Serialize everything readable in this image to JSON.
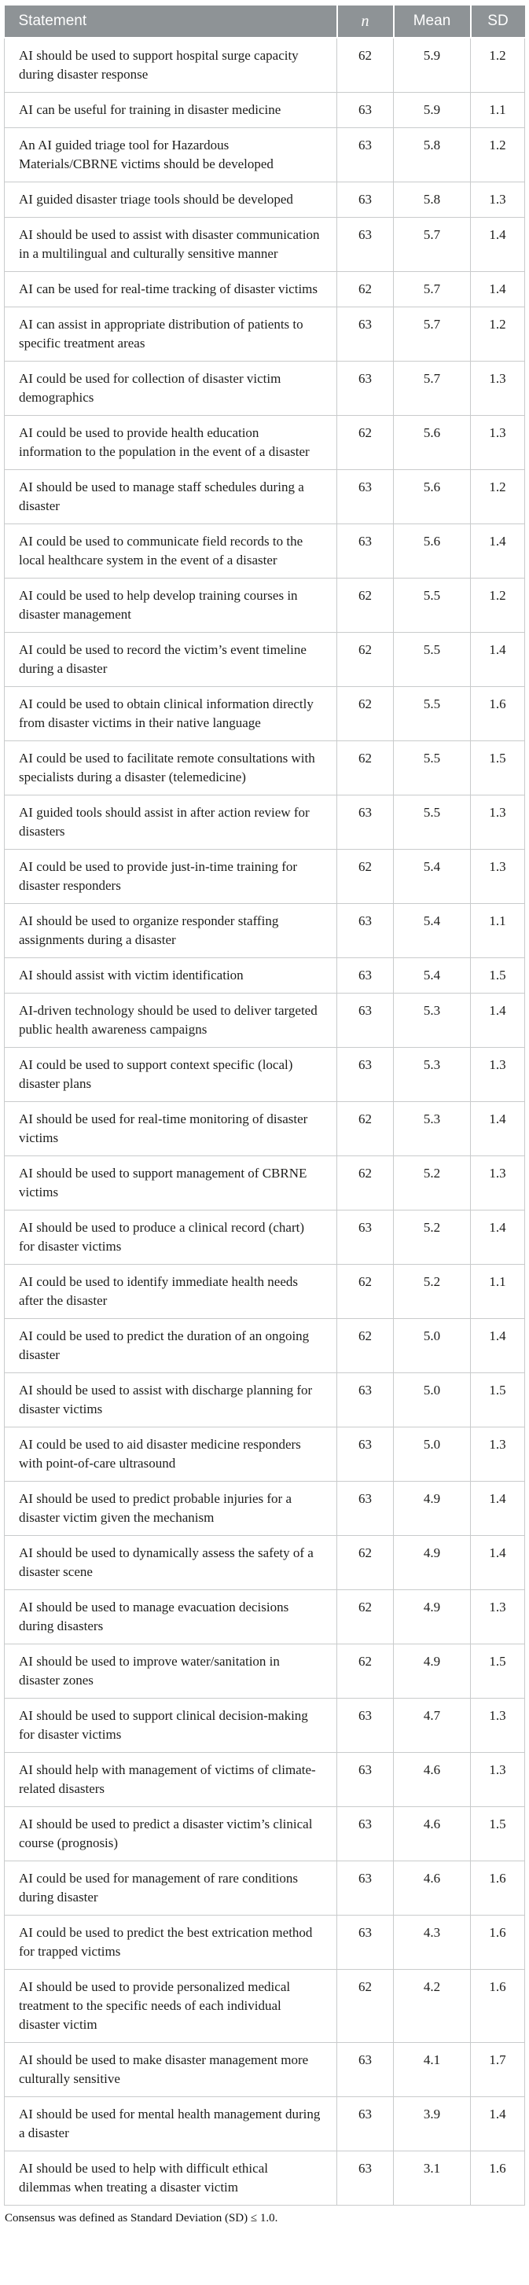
{
  "table": {
    "headers": {
      "statement": "Statement",
      "n": "n",
      "mean": "Mean",
      "sd": "SD"
    },
    "rows": [
      {
        "statement": "AI should be used to support hospital surge capacity during disaster response",
        "n": "62",
        "mean": "5.9",
        "sd": "1.2"
      },
      {
        "statement": "AI can be useful for training in disaster medicine",
        "n": "63",
        "mean": "5.9",
        "sd": "1.1"
      },
      {
        "statement": "An AI guided triage tool for Hazardous Materials/CBRNE victims should be developed",
        "n": "63",
        "mean": "5.8",
        "sd": "1.2"
      },
      {
        "statement": "AI guided disaster triage tools should be developed",
        "n": "63",
        "mean": "5.8",
        "sd": "1.3"
      },
      {
        "statement": "AI should be used to assist with disaster communication in a multilingual and culturally sensitive manner",
        "n": "63",
        "mean": "5.7",
        "sd": "1.4"
      },
      {
        "statement": "AI can be used for real-time tracking of disaster victims",
        "n": "62",
        "mean": "5.7",
        "sd": "1.4"
      },
      {
        "statement": "AI can assist in appropriate distribution of patients to specific treatment areas",
        "n": "63",
        "mean": "5.7",
        "sd": "1.2"
      },
      {
        "statement": "AI could be used for collection of disaster victim demographics",
        "n": "63",
        "mean": "5.7",
        "sd": "1.3"
      },
      {
        "statement": "AI could be used to provide health education information to the population in the event of a disaster",
        "n": "62",
        "mean": "5.6",
        "sd": "1.3"
      },
      {
        "statement": "AI should be used to manage staff schedules during a disaster",
        "n": "63",
        "mean": "5.6",
        "sd": "1.2"
      },
      {
        "statement": "AI could be used to communicate field records to the local healthcare system in the event of a disaster",
        "n": "63",
        "mean": "5.6",
        "sd": "1.4"
      },
      {
        "statement": "AI could be used to help develop training courses in disaster management",
        "n": "62",
        "mean": "5.5",
        "sd": "1.2"
      },
      {
        "statement": "AI could be used to record the victim’s event timeline during a disaster",
        "n": "62",
        "mean": "5.5",
        "sd": "1.4"
      },
      {
        "statement": "AI could be used to obtain clinical information directly from disaster victims in their native language",
        "n": "62",
        "mean": "5.5",
        "sd": "1.6"
      },
      {
        "statement": "AI could be used to facilitate remote consultations with specialists during a disaster (telemedicine)",
        "n": "62",
        "mean": "5.5",
        "sd": "1.5"
      },
      {
        "statement": "AI guided tools should assist in after action review for disasters",
        "n": "63",
        "mean": "5.5",
        "sd": "1.3"
      },
      {
        "statement": "AI could be used to provide just-in-time training for disaster responders",
        "n": "62",
        "mean": "5.4",
        "sd": "1.3"
      },
      {
        "statement": "AI should be used to organize responder staffing assignments during a disaster",
        "n": "63",
        "mean": "5.4",
        "sd": "1.1"
      },
      {
        "statement": "AI should assist with victim identification",
        "n": "63",
        "mean": "5.4",
        "sd": "1.5"
      },
      {
        "statement": "AI-driven technology should be used to deliver targeted public health awareness campaigns",
        "n": "63",
        "mean": "5.3",
        "sd": "1.4"
      },
      {
        "statement": "AI could be used to support context specific (local) disaster plans",
        "n": "63",
        "mean": "5.3",
        "sd": "1.3"
      },
      {
        "statement": "AI should be used for real-time monitoring of disaster victims",
        "n": "62",
        "mean": "5.3",
        "sd": "1.4"
      },
      {
        "statement": "AI should be used to support management of CBRNE victims",
        "n": "62",
        "mean": "5.2",
        "sd": "1.3"
      },
      {
        "statement": "AI should be used to produce a clinical record (chart) for disaster victims",
        "n": "63",
        "mean": "5.2",
        "sd": "1.4"
      },
      {
        "statement": "AI could be used to identify immediate health needs after the disaster",
        "n": "62",
        "mean": "5.2",
        "sd": "1.1"
      },
      {
        "statement": "AI could be used to predict the duration of an ongoing disaster",
        "n": "62",
        "mean": "5.0",
        "sd": "1.4"
      },
      {
        "statement": "AI should be used to assist with discharge planning for disaster victims",
        "n": "63",
        "mean": "5.0",
        "sd": "1.5"
      },
      {
        "statement": "AI could be used to aid disaster medicine responders with point-of-care ultrasound",
        "n": "63",
        "mean": "5.0",
        "sd": "1.3"
      },
      {
        "statement": "AI should be used to predict probable injuries for a disaster victim given the mechanism",
        "n": "63",
        "mean": "4.9",
        "sd": "1.4"
      },
      {
        "statement": "AI should be used to dynamically assess the safety of a disaster scene",
        "n": "62",
        "mean": "4.9",
        "sd": "1.4"
      },
      {
        "statement": "AI should be used to manage evacuation decisions during disasters",
        "n": "62",
        "mean": "4.9",
        "sd": "1.3"
      },
      {
        "statement": "AI should be used to improve water/sanitation in disaster zones",
        "n": "62",
        "mean": "4.9",
        "sd": "1.5"
      },
      {
        "statement": "AI should be used to support clinical decision-making for disaster victims",
        "n": "63",
        "mean": "4.7",
        "sd": "1.3"
      },
      {
        "statement": "AI should help with management of victims of climate-related disasters",
        "n": "63",
        "mean": "4.6",
        "sd": "1.3"
      },
      {
        "statement": "AI should be used to predict a disaster victim’s clinical course (prognosis)",
        "n": "63",
        "mean": "4.6",
        "sd": "1.5"
      },
      {
        "statement": "AI could be used for management of rare conditions during disaster",
        "n": "63",
        "mean": "4.6",
        "sd": "1.6"
      },
      {
        "statement": "AI could be used to predict the best extrication method for trapped victims",
        "n": "63",
        "mean": "4.3",
        "sd": "1.6"
      },
      {
        "statement": "AI should be used to provide personalized medical treatment to the specific needs of each individual disaster victim",
        "n": "62",
        "mean": "4.2",
        "sd": "1.6"
      },
      {
        "statement": "AI should be used to make disaster management more culturally sensitive",
        "n": "63",
        "mean": "4.1",
        "sd": "1.7"
      },
      {
        "statement": "AI should be used for mental health management during a disaster",
        "n": "63",
        "mean": "3.9",
        "sd": "1.4"
      },
      {
        "statement": "AI should be used to help with difficult ethical dilemmas when treating a disaster victim",
        "n": "63",
        "mean": "3.1",
        "sd": "1.6"
      }
    ]
  },
  "footnote": "Consensus was defined as Standard Deviation (SD) ≤ 1.0.",
  "colors": {
    "header_bg": "#8e9396",
    "header_text": "#ffffff",
    "border": "#c9cbcc",
    "body_text": "#1d1d1b"
  }
}
